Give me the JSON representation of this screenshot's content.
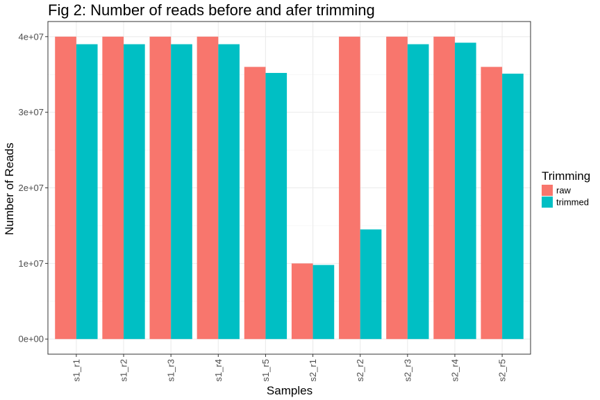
{
  "chart_data": {
    "type": "bar",
    "title": "Fig 2: Number of reads before and afer trimming",
    "xlabel": "Samples",
    "ylabel": "Number of Reads",
    "categories": [
      "s1_r1",
      "s1_r2",
      "s1_r3",
      "s1_r4",
      "s1_r5",
      "s2_r1",
      "s2_r2",
      "s2_r3",
      "s2_r4",
      "s2_r5"
    ],
    "series": [
      {
        "name": "raw",
        "color": "#F8766D",
        "values": [
          40000000,
          40000000,
          40000000,
          40000000,
          36000000,
          10000000,
          40000000,
          40000000,
          40000000,
          36000000
        ]
      },
      {
        "name": "trimmed",
        "color": "#00BFC4",
        "values": [
          39000000,
          39000000,
          39000000,
          39000000,
          35200000,
          9800000,
          14500000,
          39000000,
          39200000,
          35100000
        ]
      }
    ],
    "ylim": [
      -2000000,
      42000000
    ],
    "yticks": [
      0,
      10000000,
      20000000,
      30000000,
      40000000
    ],
    "ytick_labels": [
      "0e+00",
      "1e+07",
      "2e+07",
      "3e+07",
      "4e+07"
    ],
    "legend": {
      "title": "Trimming",
      "position": "right"
    },
    "grid": true
  }
}
